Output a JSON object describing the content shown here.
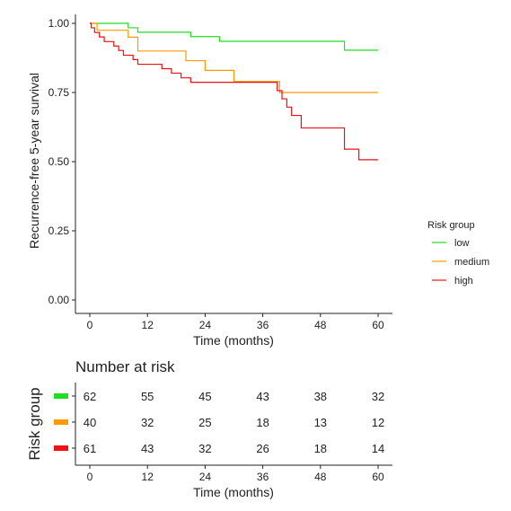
{
  "chart_data": [
    {
      "type": "line",
      "subtype": "step",
      "ylabel": "Recurrence-free 5-year survival",
      "xlabel": "Time (months)",
      "xlim": [
        0,
        60
      ],
      "ylim": [
        0,
        1
      ],
      "xticks": [
        "0",
        "12",
        "24",
        "36",
        "48",
        "60"
      ],
      "yticks": [
        "0.00",
        "0.25",
        "0.50",
        "0.75",
        "1.00"
      ],
      "grid": false,
      "legend": {
        "title": "Risk group",
        "placement": "right",
        "entries": [
          "low",
          "medium",
          "high"
        ]
      },
      "series": [
        {
          "name": "low",
          "color": "#22dd22",
          "points": [
            [
              0,
              1.0
            ],
            [
              8,
              1.0
            ],
            [
              8,
              0.984
            ],
            [
              10,
              0.984
            ],
            [
              10,
              0.968
            ],
            [
              21,
              0.968
            ],
            [
              21,
              0.952
            ],
            [
              27,
              0.952
            ],
            [
              27,
              0.935
            ],
            [
              53,
              0.935
            ],
            [
              53,
              0.903
            ],
            [
              60,
              0.903
            ]
          ]
        },
        {
          "name": "medium",
          "color": "#ff9900",
          "points": [
            [
              0,
              1.0
            ],
            [
              1.5,
              1.0
            ],
            [
              1.5,
              0.975
            ],
            [
              8,
              0.975
            ],
            [
              8,
              0.95
            ],
            [
              10,
              0.95
            ],
            [
              10,
              0.9
            ],
            [
              20,
              0.9
            ],
            [
              20,
              0.865
            ],
            [
              24,
              0.865
            ],
            [
              24,
              0.83
            ],
            [
              30,
              0.83
            ],
            [
              30,
              0.79
            ],
            [
              39.5,
              0.79
            ],
            [
              39.5,
              0.75
            ],
            [
              60,
              0.75
            ]
          ]
        },
        {
          "name": "high",
          "color": "#ee1111",
          "points": [
            [
              0,
              1.0
            ],
            [
              0.3,
              1.0
            ],
            [
              0.3,
              0.984
            ],
            [
              1,
              0.984
            ],
            [
              1,
              0.967
            ],
            [
              2,
              0.967
            ],
            [
              2,
              0.951
            ],
            [
              3,
              0.951
            ],
            [
              3,
              0.934
            ],
            [
              5,
              0.934
            ],
            [
              5,
              0.918
            ],
            [
              6,
              0.918
            ],
            [
              6,
              0.902
            ],
            [
              7,
              0.902
            ],
            [
              7,
              0.885
            ],
            [
              9,
              0.885
            ],
            [
              9,
              0.869
            ],
            [
              10,
              0.869
            ],
            [
              10,
              0.852
            ],
            [
              15,
              0.852
            ],
            [
              15,
              0.836
            ],
            [
              17,
              0.836
            ],
            [
              17,
              0.82
            ],
            [
              19,
              0.82
            ],
            [
              19,
              0.803
            ],
            [
              21,
              0.803
            ],
            [
              21,
              0.787
            ],
            [
              39,
              0.787
            ],
            [
              39,
              0.757
            ],
            [
              40,
              0.757
            ],
            [
              40,
              0.727
            ],
            [
              41,
              0.727
            ],
            [
              41,
              0.697
            ],
            [
              42,
              0.697
            ],
            [
              42,
              0.667
            ],
            [
              44,
              0.667
            ],
            [
              44,
              0.622
            ],
            [
              53,
              0.622
            ],
            [
              53,
              0.545
            ],
            [
              56,
              0.545
            ],
            [
              56,
              0.507
            ],
            [
              60,
              0.507
            ]
          ]
        }
      ]
    },
    {
      "type": "table",
      "title": "Number at risk",
      "ylabel": "Risk group",
      "xlabel": "Time (months)",
      "xticks": [
        "0",
        "12",
        "24",
        "36",
        "48",
        "60"
      ],
      "rows": [
        {
          "name": "low",
          "color": "#22dd22",
          "values": [
            "62",
            "55",
            "45",
            "43",
            "38",
            "32"
          ]
        },
        {
          "name": "medium",
          "color": "#ff9900",
          "values": [
            "40",
            "32",
            "25",
            "18",
            "13",
            "12"
          ]
        },
        {
          "name": "high",
          "color": "#ee1111",
          "values": [
            "61",
            "43",
            "32",
            "26",
            "18",
            "14"
          ]
        }
      ]
    }
  ]
}
